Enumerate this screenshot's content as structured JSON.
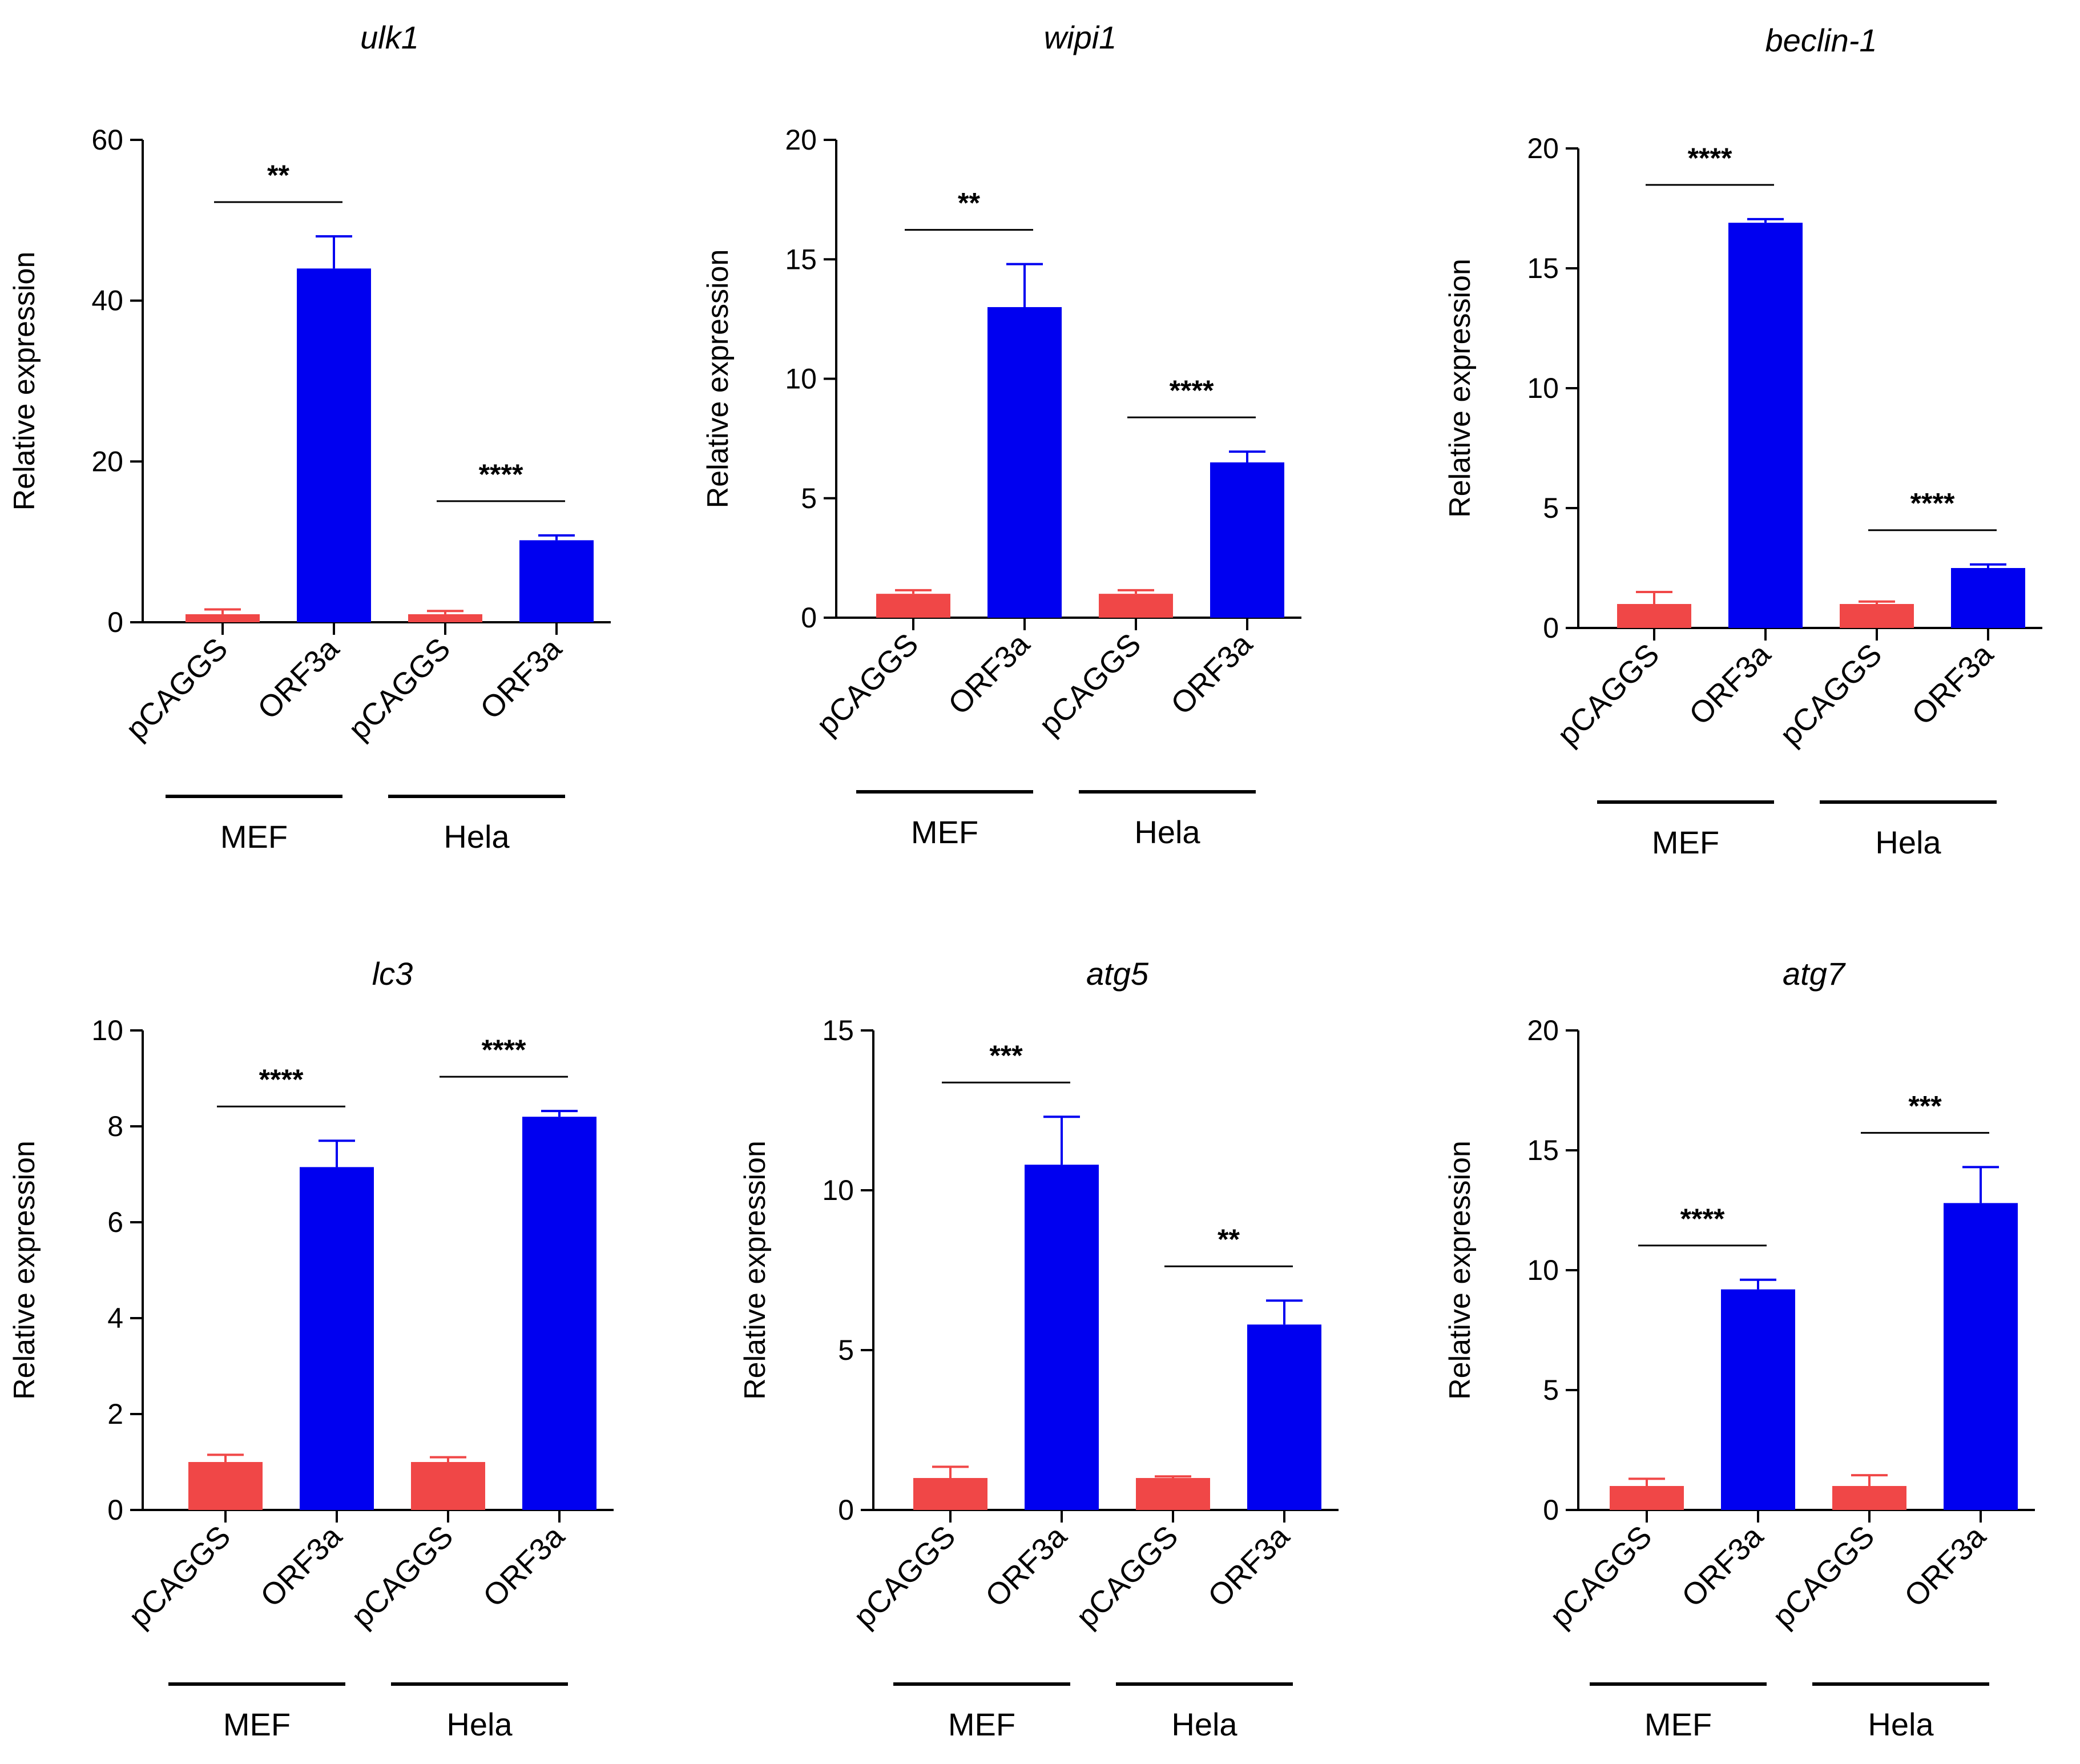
{
  "figure": {
    "colors": {
      "pcaggs": "#f04747",
      "orf3a": "#0000f0",
      "axis": "#000000"
    },
    "chart_data": [
      {
        "type": "bar",
        "title": "ulk1",
        "ylabel": "Relative expression",
        "ylim": [
          0,
          60
        ],
        "yticks": [
          0,
          20,
          40,
          60
        ],
        "categories": [
          "pCAGGS",
          "ORF3a",
          "pCAGGS",
          "ORF3a"
        ],
        "groups": [
          "MEF",
          "Hela"
        ],
        "values": [
          1.0,
          44.0,
          1.0,
          10.2
        ],
        "errors": [
          0.6,
          4.0,
          0.4,
          0.6
        ],
        "significance": [
          "**",
          "****"
        ]
      },
      {
        "type": "bar",
        "title": "wipi1",
        "ylabel": "Relative expression",
        "ylim": [
          0,
          20
        ],
        "yticks": [
          0,
          5,
          10,
          15,
          20
        ],
        "categories": [
          "pCAGGS",
          "ORF3a",
          "pCAGGS",
          "ORF3a"
        ],
        "groups": [
          "MEF",
          "Hela"
        ],
        "values": [
          1.0,
          13.0,
          1.0,
          6.5
        ],
        "errors": [
          0.15,
          1.8,
          0.15,
          0.45
        ],
        "significance": [
          "**",
          "****"
        ]
      },
      {
        "type": "bar",
        "title": "beclin-1",
        "ylabel": "Relative expression",
        "ylim": [
          0,
          20
        ],
        "yticks": [
          0,
          5,
          10,
          15,
          20
        ],
        "categories": [
          "pCAGGS",
          "ORF3a",
          "pCAGGS",
          "ORF3a"
        ],
        "groups": [
          "MEF",
          "Hela"
        ],
        "values": [
          1.0,
          16.9,
          1.0,
          2.5
        ],
        "errors": [
          0.5,
          0.15,
          0.1,
          0.15
        ],
        "significance": [
          "****",
          "****"
        ]
      },
      {
        "type": "bar",
        "title": "lc3",
        "ylabel": "Relative expression",
        "ylim": [
          0,
          10
        ],
        "yticks": [
          0,
          2,
          4,
          6,
          8,
          10
        ],
        "categories": [
          "pCAGGS",
          "ORF3a",
          "pCAGGS",
          "ORF3a"
        ],
        "groups": [
          "MEF",
          "Hela"
        ],
        "values": [
          1.0,
          7.15,
          1.0,
          8.2
        ],
        "errors": [
          0.15,
          0.55,
          0.1,
          0.12
        ],
        "significance": [
          "****",
          "****"
        ]
      },
      {
        "type": "bar",
        "title": "atg5",
        "ylabel": "Relative expression",
        "ylim": [
          0,
          15
        ],
        "yticks": [
          0,
          5,
          10,
          15
        ],
        "categories": [
          "pCAGGS",
          "ORF3a",
          "pCAGGS",
          "ORF3a"
        ],
        "groups": [
          "MEF",
          "Hela"
        ],
        "values": [
          1.0,
          10.8,
          1.0,
          5.8
        ],
        "errors": [
          0.35,
          1.5,
          0.05,
          0.75
        ],
        "significance": [
          "***",
          "**"
        ]
      },
      {
        "type": "bar",
        "title": "atg7",
        "ylabel": "Relative expression",
        "ylim": [
          0,
          20
        ],
        "yticks": [
          0,
          5,
          10,
          15,
          20
        ],
        "categories": [
          "pCAGGS",
          "ORF3a",
          "pCAGGS",
          "ORF3a"
        ],
        "groups": [
          "MEF",
          "Hela"
        ],
        "values": [
          1.0,
          9.2,
          1.0,
          12.8
        ],
        "errors": [
          0.3,
          0.4,
          0.45,
          1.5
        ],
        "significance": [
          "****",
          "***"
        ]
      }
    ]
  }
}
